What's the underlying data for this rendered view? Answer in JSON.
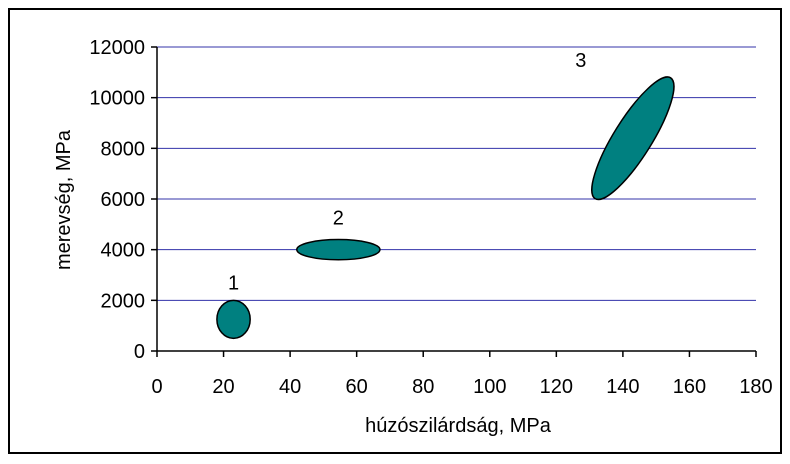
{
  "chart_data": {
    "type": "scatter",
    "title": "",
    "xlabel": "húzószilárdság, MPa",
    "ylabel": "merevség, MPa",
    "xlim": [
      0,
      180
    ],
    "ylim": [
      0,
      12000
    ],
    "xticks": [
      0,
      20,
      40,
      60,
      80,
      100,
      120,
      140,
      160,
      180
    ],
    "yticks": [
      0,
      2000,
      4000,
      6000,
      8000,
      10000,
      12000
    ],
    "grid": "horizontal",
    "legend": "none",
    "colors": {
      "fill": "#008080",
      "gridline": "#3333aa",
      "axis": "#000000"
    },
    "regions": [
      {
        "label": "1",
        "x_center": 23,
        "y_center": 1250,
        "x_range": [
          18,
          28
        ],
        "y_range": [
          500,
          2000
        ],
        "angle_deg": 0
      },
      {
        "label": "2",
        "x_center": 54.5,
        "y_center": 4000,
        "x_range": [
          42,
          67
        ],
        "y_range": [
          3600,
          4400
        ],
        "angle_deg": 0
      },
      {
        "label": "3",
        "x_center": 143,
        "y_center": 8400,
        "x_range": [
          133,
          153
        ],
        "y_range": [
          5900,
          11000
        ],
        "angle_deg": -58
      }
    ]
  }
}
